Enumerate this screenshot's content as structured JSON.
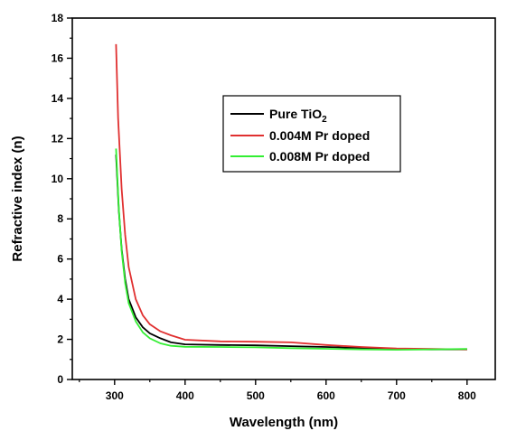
{
  "chart_data": {
    "type": "line",
    "xlabel": "Wavelength (nm)",
    "ylabel": "Refractive index (n)",
    "xlim": [
      240,
      840
    ],
    "ylim": [
      0,
      18
    ],
    "x_ticks": [
      "300",
      "400",
      "500",
      "600",
      "700",
      "800"
    ],
    "y_ticks": [
      "0",
      "2",
      "4",
      "6",
      "8",
      "10",
      "12",
      "14",
      "16",
      "18"
    ],
    "x_tick_values": [
      300,
      400,
      500,
      600,
      700,
      800
    ],
    "y_tick_values": [
      0,
      2,
      4,
      6,
      8,
      10,
      12,
      14,
      16,
      18
    ],
    "legend_position": "upper-center-right",
    "grid": false,
    "series": [
      {
        "name": "Pure TiO2",
        "name_main": "Pure TiO",
        "name_sub": "2",
        "color": "#000000",
        "x": [
          302,
          306,
          310,
          315,
          320,
          330,
          340,
          350,
          365,
          380,
          400,
          450,
          500,
          550,
          600,
          650,
          700,
          750,
          800
        ],
        "y": [
          11.2,
          8.4,
          6.5,
          5.0,
          4.0,
          3.1,
          2.6,
          2.3,
          2.05,
          1.85,
          1.75,
          1.72,
          1.7,
          1.66,
          1.62,
          1.57,
          1.52,
          1.5,
          1.5
        ]
      },
      {
        "name": "0.004M Pr doped",
        "color": "#e03030",
        "x": [
          302,
          305,
          310,
          315,
          320,
          330,
          340,
          350,
          365,
          380,
          400,
          450,
          500,
          550,
          600,
          650,
          700,
          750,
          800
        ],
        "y": [
          16.7,
          13.0,
          9.5,
          7.2,
          5.6,
          4.0,
          3.2,
          2.75,
          2.4,
          2.2,
          1.98,
          1.9,
          1.88,
          1.85,
          1.72,
          1.62,
          1.55,
          1.52,
          1.5
        ]
      },
      {
        "name": "0.008M Pr doped",
        "color": "#33ee33",
        "x": [
          302,
          306,
          310,
          315,
          320,
          330,
          340,
          350,
          365,
          380,
          400,
          450,
          500,
          550,
          600,
          650,
          700,
          750,
          800
        ],
        "y": [
          11.5,
          8.5,
          6.4,
          4.8,
          3.8,
          2.9,
          2.35,
          2.05,
          1.8,
          1.68,
          1.63,
          1.62,
          1.6,
          1.56,
          1.53,
          1.5,
          1.48,
          1.5,
          1.52
        ]
      }
    ]
  }
}
